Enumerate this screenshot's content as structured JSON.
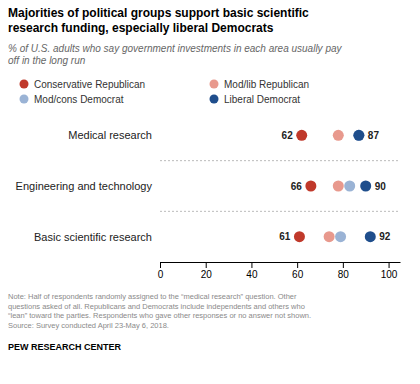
{
  "chart_data": {
    "type": "dot",
    "title": "Majorities of political groups support basic scientific\nresearch funding, especially liberal Democrats",
    "subtitle": "% of U.S. adults who say government investments in each area usually pay\noff in the long run",
    "categories": [
      "Medical research",
      "Engineering and technology",
      "Basic scientific research"
    ],
    "series": [
      {
        "name": "Conservative Republican",
        "color": "#c0392b",
        "values": [
          62,
          66,
          61
        ],
        "data_labels": true
      },
      {
        "name": "Mod/lib Republican",
        "color": "#e8998d",
        "values": [
          78,
          78,
          74
        ]
      },
      {
        "name": "Mod/cons Democrat",
        "color": "#9ab3d5",
        "values": [
          87,
          83,
          79
        ]
      },
      {
        "name": "Liberal Democrat",
        "color": "#1f4e8c",
        "values": [
          87,
          90,
          92
        ],
        "data_labels": true
      }
    ],
    "xlim": [
      0,
      105
    ],
    "xticks": [
      0,
      20,
      40,
      60,
      80,
      100
    ],
    "grid": false,
    "legend": "top",
    "annotations": [
      "Note: Half of respondents randomly assigned to the “medical research” question. Other\nquestions asked of all. Republicans and Democrats include independents and others who\n“lean” toward the parties. Respondents who gave other responses or no answer not shown.\nSource: Survey conducted April 23-May 6, 2018.",
      "PEW RESEARCH CENTER"
    ]
  }
}
